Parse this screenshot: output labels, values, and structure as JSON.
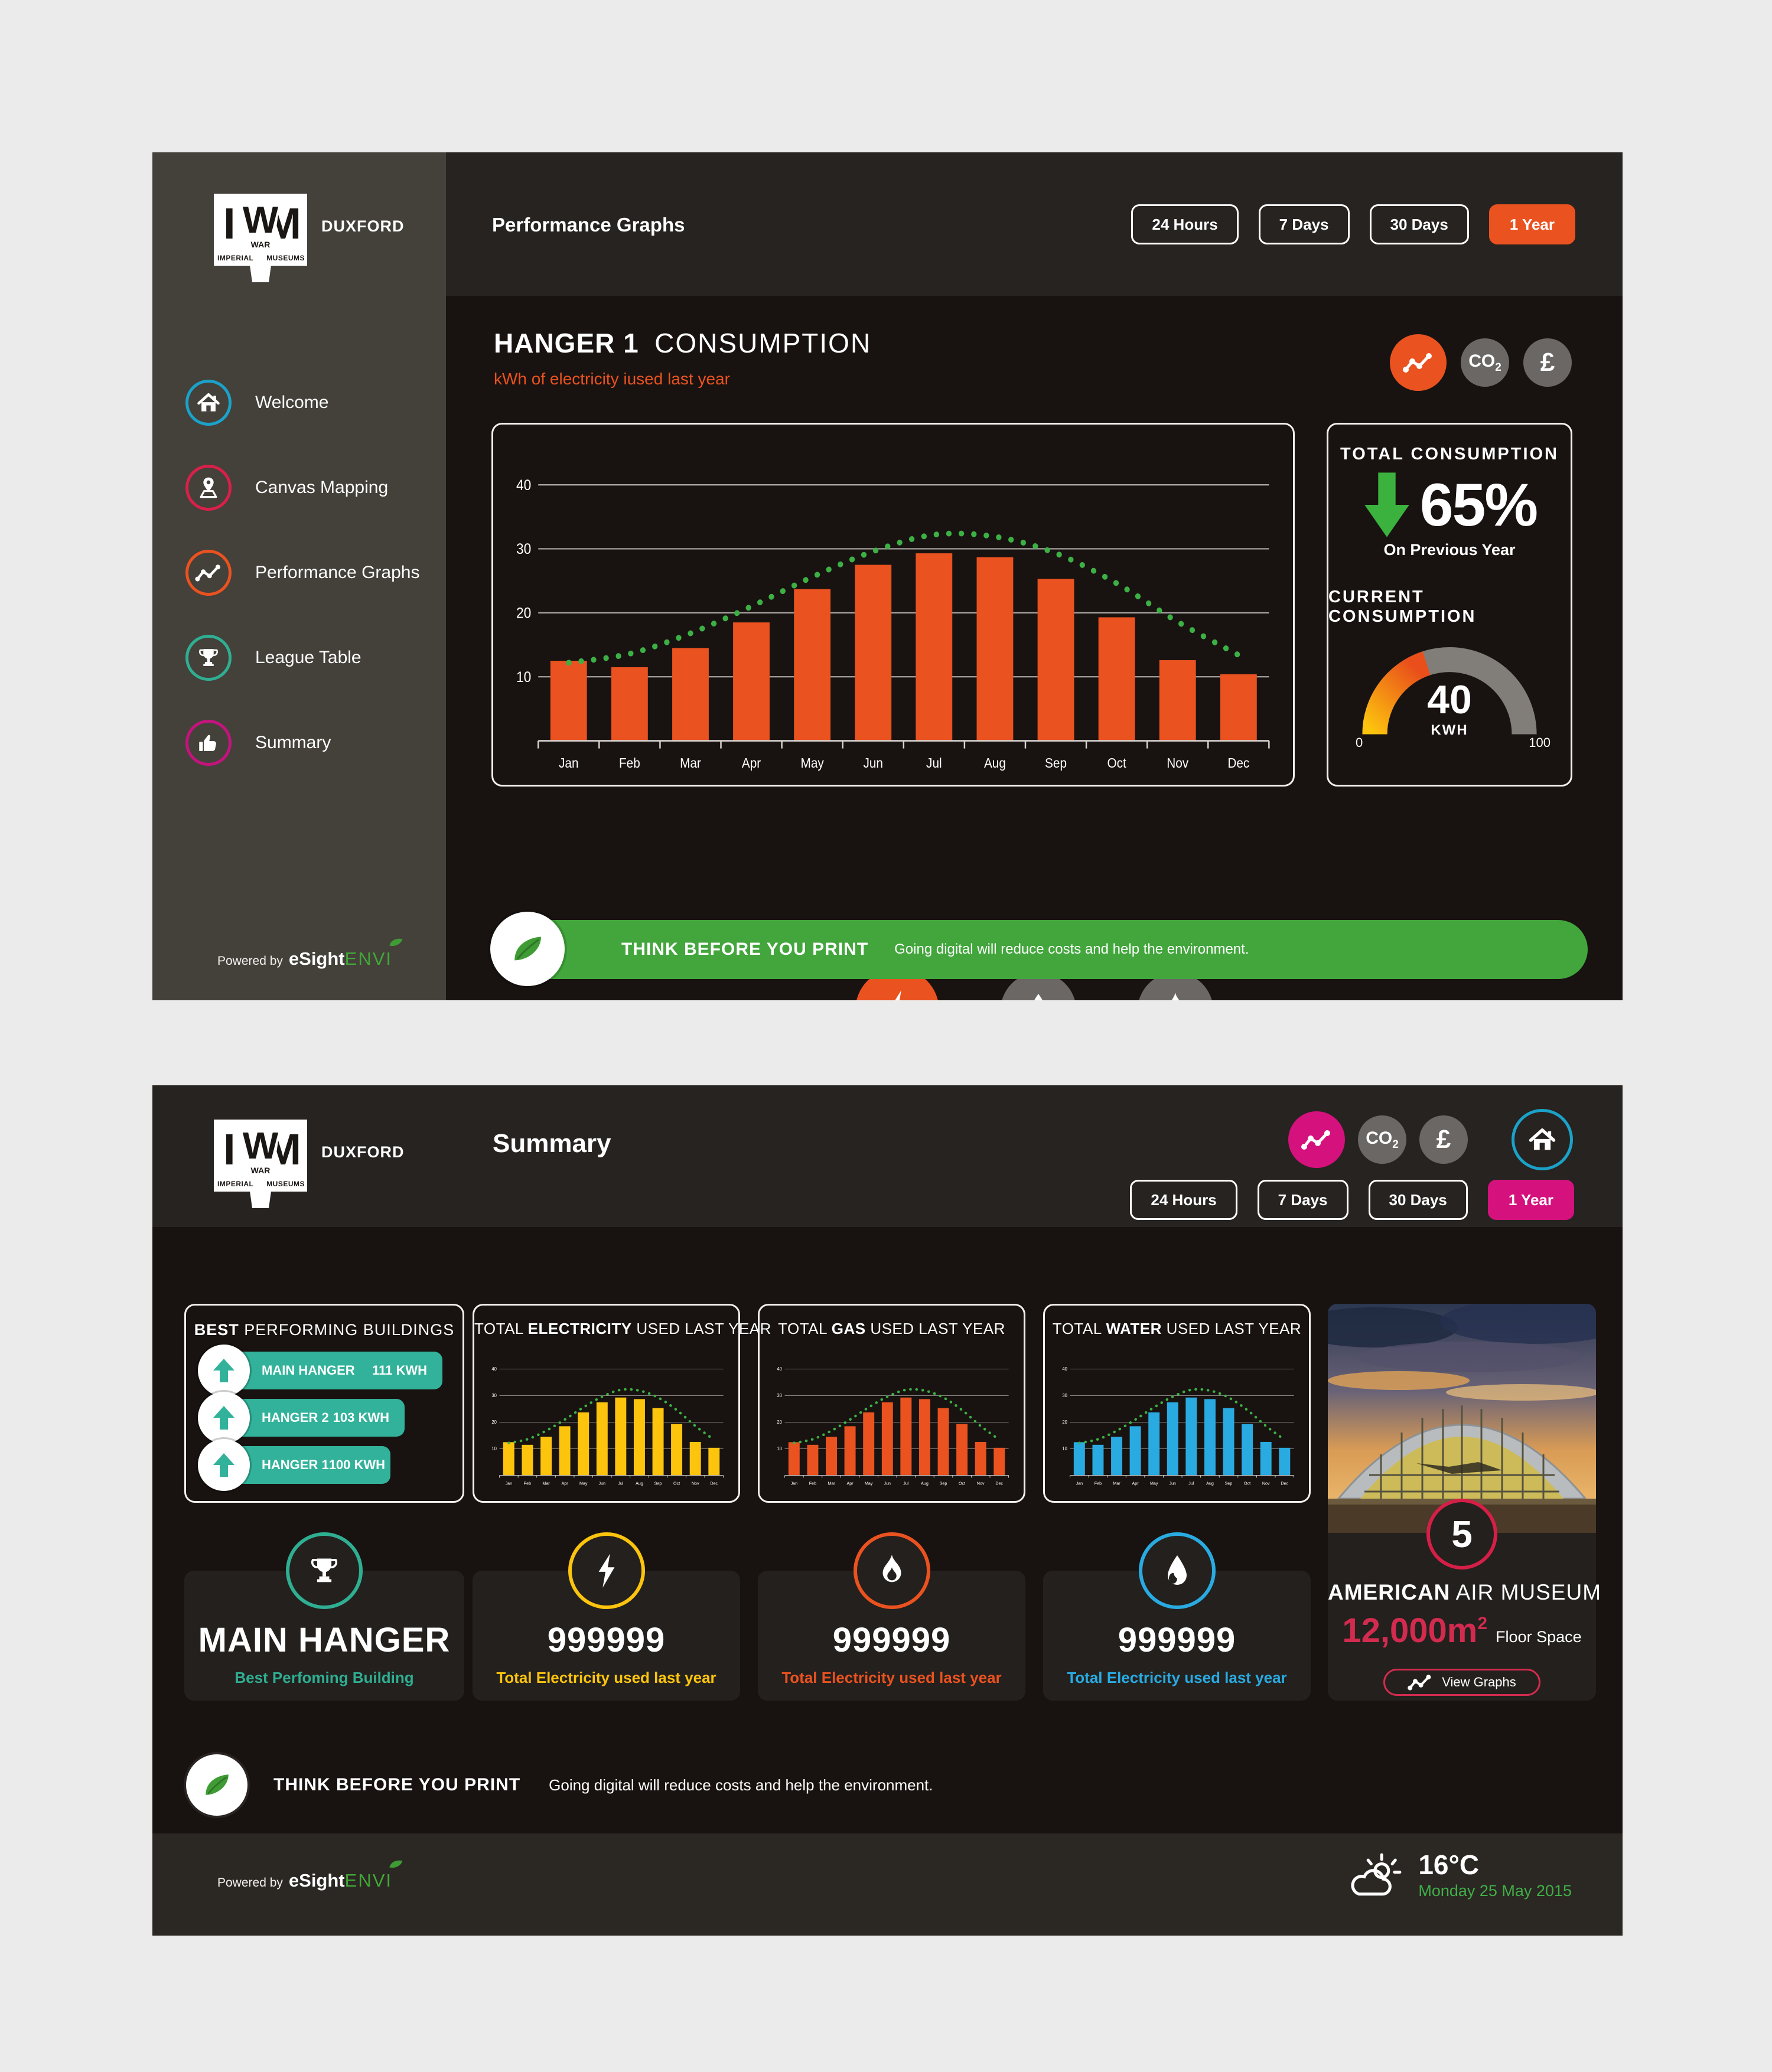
{
  "brand": {
    "i": "I",
    "w": "W",
    "m": "M",
    "war": "WAR",
    "imperial": "IMPERIAL",
    "museums": "MUSEUMS",
    "site": "DUXFORD"
  },
  "powered": {
    "prefix": "Powered by",
    "brand": "eSight",
    "suffix": "ENVI"
  },
  "unit_icons": {
    "co2_main": "CO",
    "co2_sub": "2",
    "pound": "£"
  },
  "chart_data": [
    {
      "id": "hanger1-consumption",
      "type": "bar",
      "title": "HANGER 1 CONSUMPTION",
      "subtitle": "kWh of electricity iused last year",
      "categories": [
        "Jan",
        "Feb",
        "Mar",
        "Apr",
        "May",
        "Jun",
        "Jul",
        "Aug",
        "Sep",
        "Oct",
        "Nov",
        "Dec"
      ],
      "values": [
        12.5,
        11.5,
        14.5,
        18.5,
        23.7,
        27.5,
        29.3,
        28.7,
        25.3,
        19.3,
        12.6,
        10.4
      ],
      "target_curve": [
        12.2,
        13.6,
        16.8,
        21.0,
        25.6,
        29.6,
        32.2,
        31.9,
        29.3,
        24.6,
        18.6,
        13.4
      ],
      "ylim": [
        0,
        44
      ],
      "yticks": [
        10,
        20,
        30,
        40
      ],
      "grid": true,
      "legend": false,
      "bar_color": "#ea5220",
      "curve_color": "#3db045",
      "xlabel": "",
      "ylabel": ""
    },
    {
      "id": "total-electricity",
      "type": "bar",
      "title": "TOTAL ELECTRICITY USED LAST YEAR",
      "categories": [
        "Jan",
        "Feb",
        "Mar",
        "Apr",
        "May",
        "Jun",
        "Jul",
        "Aug",
        "Sep",
        "Oct",
        "Nov",
        "Dec"
      ],
      "values": [
        12.5,
        11.5,
        14.5,
        18.5,
        23.7,
        27.5,
        29.3,
        28.7,
        25.3,
        19.3,
        12.6,
        10.4
      ],
      "target_curve": [
        12.2,
        13.6,
        16.8,
        21.0,
        25.6,
        29.6,
        32.2,
        31.9,
        29.3,
        24.6,
        18.6,
        13.4
      ],
      "ylim": [
        0,
        44
      ],
      "yticks": [
        10,
        20,
        30,
        40
      ],
      "grid": true,
      "legend": false,
      "bar_color": "#fdc40e",
      "curve_color": "#3db045",
      "xlabel": "",
      "ylabel": ""
    },
    {
      "id": "total-gas",
      "type": "bar",
      "title": "TOTAL GAS USED LAST YEAR",
      "categories": [
        "Jan",
        "Feb",
        "Mar",
        "Apr",
        "May",
        "Jun",
        "Jul",
        "Aug",
        "Sep",
        "Oct",
        "Nov",
        "Dec"
      ],
      "values": [
        12.5,
        11.5,
        14.5,
        18.5,
        23.7,
        27.5,
        29.3,
        28.7,
        25.3,
        19.3,
        12.6,
        10.4
      ],
      "target_curve": [
        12.2,
        13.6,
        16.8,
        21.0,
        25.6,
        29.6,
        32.2,
        31.9,
        29.3,
        24.6,
        18.6,
        13.4
      ],
      "ylim": [
        0,
        44
      ],
      "yticks": [
        10,
        20,
        30,
        40
      ],
      "grid": true,
      "legend": false,
      "bar_color": "#ea5220",
      "curve_color": "#3db045",
      "xlabel": "",
      "ylabel": ""
    },
    {
      "id": "total-water",
      "type": "bar",
      "title": "TOTAL WATER USED LAST YEAR",
      "categories": [
        "Jan",
        "Feb",
        "Mar",
        "Apr",
        "May",
        "Jun",
        "Jul",
        "Aug",
        "Sep",
        "Oct",
        "Nov",
        "Dec"
      ],
      "values": [
        12.5,
        11.5,
        14.5,
        18.5,
        23.7,
        27.5,
        29.3,
        28.7,
        25.3,
        19.3,
        12.6,
        10.4
      ],
      "target_curve": [
        12.2,
        13.6,
        16.8,
        21.0,
        25.6,
        29.6,
        32.2,
        31.9,
        29.3,
        24.6,
        18.6,
        13.4
      ],
      "ylim": [
        0,
        44
      ],
      "yticks": [
        10,
        20,
        30,
        40
      ],
      "grid": true,
      "legend": false,
      "bar_color": "#29abe2",
      "curve_color": "#3db045",
      "xlabel": "",
      "ylabel": ""
    }
  ],
  "screen1": {
    "header_title": "Performance Graphs",
    "time_buttons": [
      "24 Hours",
      "7 Days",
      "30 Days",
      "1 Year"
    ],
    "active_button": "1 Year",
    "sidebar_items": [
      {
        "label": "Welcome",
        "ring": "#1aa2c9"
      },
      {
        "label": "Canvas Mapping",
        "ring": "#d92049"
      },
      {
        "label": "Performance Graphs",
        "ring": "#ea5220"
      },
      {
        "label": "League Table",
        "ring": "#2fae92"
      },
      {
        "label": "Summary",
        "ring": "#c5137e"
      }
    ],
    "heading_bold": "HANGER 1",
    "heading_light": "CONSUMPTION",
    "subtitle": "kWh of electricity iused last year",
    "stats": {
      "total_title": "TOTAL CONSUMPTION",
      "percent": "65%",
      "total_sub": "On Previous Year",
      "current_title": "CURRENT CONSUMPTION",
      "gauge": {
        "value": "40",
        "unit": "KWH",
        "min": "0",
        "max": "100",
        "fraction": 0.4
      }
    },
    "banner": {
      "title": "THINK BEFORE YOU PRINT",
      "text": "Going digital will reduce costs and help the environment."
    }
  },
  "screen2": {
    "header_title": "Summary",
    "time_buttons": [
      "24 Hours",
      "7 Days",
      "30 Days",
      "1 Year"
    ],
    "active_button": "1 Year",
    "best": {
      "title_bold": "BEST",
      "title_rest": " PERFORMING BUILDINGS",
      "rows": [
        {
          "name": "MAIN HANGER",
          "kwh": 111,
          "value_label": "111 KWH"
        },
        {
          "name": "HANGER 2",
          "kwh": 103,
          "value_label": "103 KWH"
        },
        {
          "name": "HANGER 1",
          "kwh": 100,
          "value_label": "100 KWH"
        }
      ]
    },
    "panels": [
      {
        "pre": "TOTAL ",
        "bold": "ELECTRICITY",
        "post": " USED LAST YEAR"
      },
      {
        "pre": "TOTAL ",
        "bold": "GAS",
        "post": " USED LAST YEAR"
      },
      {
        "pre": "TOTAL ",
        "bold": "WATER",
        "post": " USED LAST YEAR"
      }
    ],
    "museum": {
      "rank": "5",
      "name_bold": "AMERICAN",
      "name_rest": " AIR MUSEUM",
      "area_value": "12,000m",
      "area_sup": "2",
      "area_label": "Floor Space",
      "button_label": "View Graphs"
    },
    "summary_cards": [
      {
        "title": "MAIN HANGER",
        "subtitle": "Best Perfoming Building",
        "color": "#2fae92"
      },
      {
        "title": "999999",
        "subtitle": "Total Electricity used last year",
        "color": "#fdc40e"
      },
      {
        "title": "999999",
        "subtitle": "Total Electricity used last year",
        "color": "#ea5220"
      },
      {
        "title": "999999",
        "subtitle": "Total Electricity used last year",
        "color": "#29abe2"
      }
    ],
    "print": {
      "title": "THINK BEFORE YOU PRINT",
      "text": "Going digital will reduce costs and help the environment."
    },
    "weather": {
      "temp": "16°C",
      "date": "Monday 25 May 2015"
    }
  }
}
